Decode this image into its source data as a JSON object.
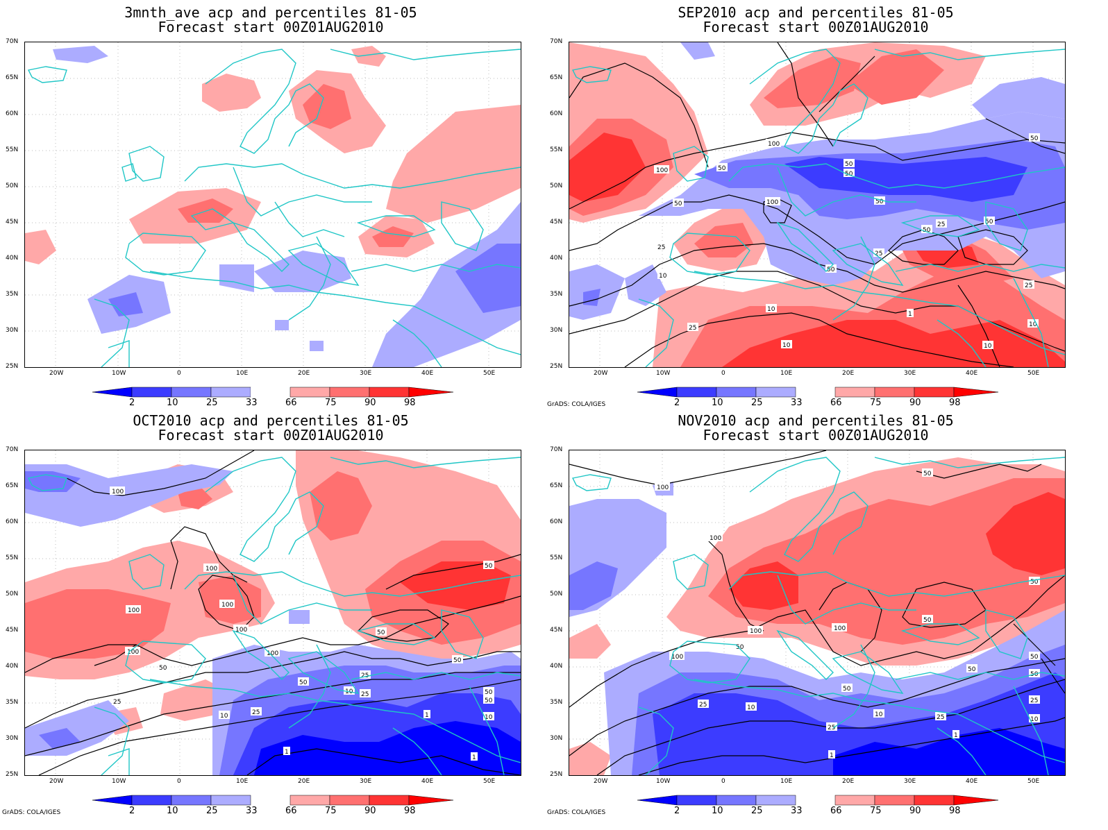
{
  "panels": [
    {
      "title_line1": "3mnth_ave acp and percentiles 81-05",
      "title_line2": "Forecast start 00Z01AUG2010",
      "credit": ""
    },
    {
      "title_line1": "SEP2010 acp and percentiles 81-05",
      "title_line2": "Forecast start 00Z01AUG2010",
      "credit": "GrADS: COLA/IGES"
    },
    {
      "title_line1": "OCT2010 acp and percentiles 81-05",
      "title_line2": "Forecast start 00Z01AUG2010",
      "credit": "GrADS: COLA/IGES"
    },
    {
      "title_line1": "NOV2010 acp and percentiles 81-05",
      "title_line2": "Forecast start 00Z01AUG2010",
      "credit": "GrADS: COLA/IGES"
    }
  ],
  "lat_labels": [
    "70N",
    "65N",
    "60N",
    "55N",
    "50N",
    "45N",
    "40N",
    "35N",
    "30N",
    "25N"
  ],
  "lon_labels": [
    "20W",
    "10W",
    "0",
    "10E",
    "20E",
    "30E",
    "40E",
    "50E"
  ],
  "colorbar": {
    "labels": [
      "2",
      "10",
      "25",
      "33",
      "66",
      "75",
      "90",
      "98"
    ],
    "colors": [
      "#0000ff",
      "#3c3cff",
      "#7676ff",
      "#acacff",
      "#ffffff",
      "#ffa8a8",
      "#ff7070",
      "#ff3434",
      "#ff0000"
    ]
  },
  "contour_labels": {
    "sep": [
      "100",
      "100",
      "50",
      "50",
      "50",
      "50",
      "50",
      "50",
      "50",
      "50",
      "25",
      "25",
      "25",
      "25",
      "10",
      "10",
      "10",
      "10",
      "10",
      "1",
      "100",
      "50",
      "25"
    ],
    "oct": [
      "100",
      "100",
      "100",
      "100",
      "100",
      "100",
      "100",
      "50",
      "50",
      "50",
      "50",
      "50",
      "50",
      "25",
      "25",
      "25",
      "10",
      "10",
      "1",
      "1",
      "1",
      "50",
      "25",
      "10"
    ],
    "nov": [
      "100",
      "100",
      "100",
      "100",
      "100",
      "50",
      "50",
      "50",
      "50",
      "50",
      "50",
      "25",
      "25",
      "25",
      "10",
      "10",
      "1",
      "1",
      "50",
      "50",
      "10",
      "25"
    ]
  }
}
